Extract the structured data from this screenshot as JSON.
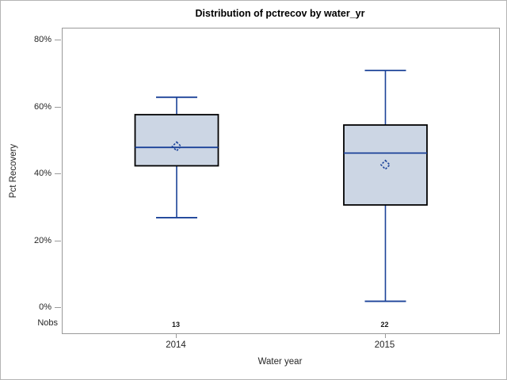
{
  "chart_data": {
    "type": "boxplot",
    "title": "Distribution of pctrecov by water_yr",
    "xlabel": "Water year",
    "ylabel": "Pct Recovery",
    "ylim": [
      0,
      80
    ],
    "grid": false,
    "legend": false,
    "nobs_label": "Nobs",
    "yticks": [
      {
        "value": 0,
        "label": "0%"
      },
      {
        "value": 20,
        "label": "20%"
      },
      {
        "value": 40,
        "label": "40%"
      },
      {
        "value": 60,
        "label": "60%"
      },
      {
        "value": 80,
        "label": "80%"
      }
    ],
    "groups": [
      {
        "category": "2014",
        "n": "13",
        "min": 27,
        "q1": 42.5,
        "median": 48,
        "mean": 48.3,
        "q3": 57.8,
        "max": 63
      },
      {
        "category": "2015",
        "n": "22",
        "min": 2,
        "q1": 30.8,
        "median": 46.3,
        "mean": 42.8,
        "q3": 54.7,
        "max": 71
      }
    ],
    "colors": {
      "box_fill": "#ccd6e4",
      "box_border": "#000000",
      "line": "#1b4298",
      "frame": "#9a9a9a",
      "text": "#262626",
      "title_text": "#000000",
      "background": "#ffffff"
    }
  }
}
